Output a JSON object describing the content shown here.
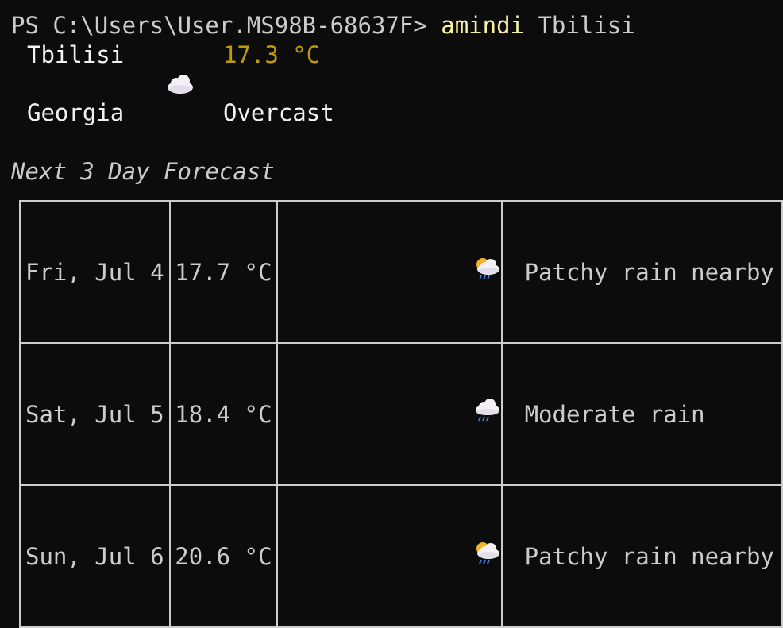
{
  "prompt": {
    "prefix": "PS C:\\Users\\User.MS98B-68637F> ",
    "command": "amindi",
    "argument": " Tbilisi"
  },
  "current": {
    "city": "Tbilisi",
    "temperature": "17.3 °C",
    "icon": "cloud-icon",
    "country": "Georgia",
    "condition": "Overcast"
  },
  "forecast": {
    "heading": "Next 3 Day Forecast",
    "rows": [
      {
        "date": "Fri, Jul 4",
        "temp": "17.7 °C",
        "icon": "sun-cloud-rain-icon",
        "condition": "Patchy rain nearby"
      },
      {
        "date": "Sat, Jul 5",
        "temp": "18.4 °C",
        "icon": "cloud-rain-icon",
        "condition": "Moderate rain"
      },
      {
        "date": "Sun, Jul 6",
        "temp": "20.6 °C",
        "icon": "sun-cloud-rain-icon",
        "condition": "Patchy rain nearby"
      }
    ]
  },
  "colors": {
    "background": "#0c0c0c",
    "text": "#cccccc",
    "command": "#f9f1a5",
    "temperature": "#c19c00"
  }
}
